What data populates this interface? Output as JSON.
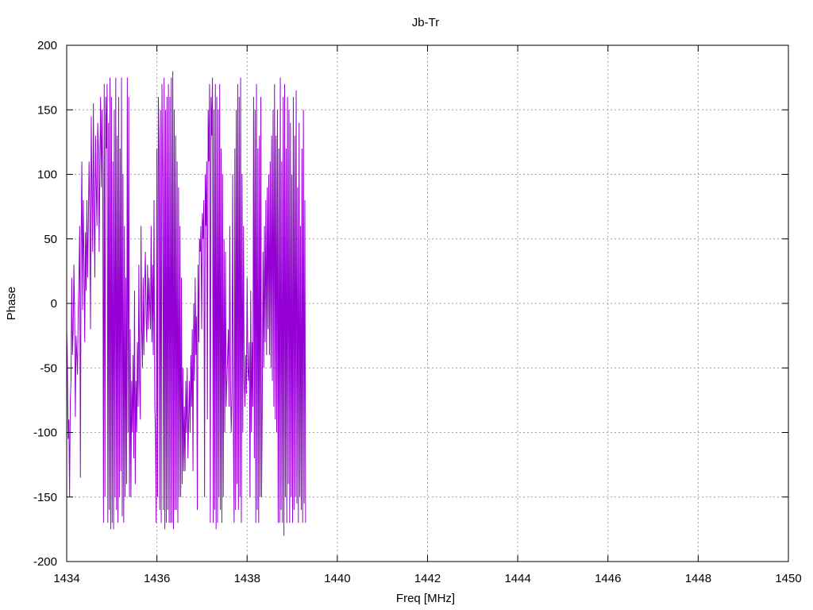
{
  "chart_data": {
    "type": "line",
    "title": "Jb-Tr",
    "xlabel": "Freq [MHz]",
    "ylabel": "Phase",
    "xlim": [
      1434,
      1450
    ],
    "ylim": [
      -200,
      200
    ],
    "x_ticks": [
      1434,
      1436,
      1438,
      1440,
      1442,
      1444,
      1446,
      1448,
      1450
    ],
    "y_ticks": [
      -200,
      -150,
      -100,
      -50,
      0,
      50,
      100,
      150,
      200
    ],
    "grid": true,
    "line_color": "#9400D3",
    "series": [
      {
        "x_start": 1434,
        "x_step": 0.016,
        "values": [
          -20,
          -50,
          -105,
          -90,
          -150,
          -75,
          -60,
          20,
          -40,
          -20,
          30,
          -10,
          -88,
          -25,
          -40,
          -55,
          -5,
          20,
          60,
          -135,
          45,
          110,
          -5,
          80,
          30,
          -30,
          55,
          10,
          80,
          20,
          60,
          110,
          70,
          -20,
          145,
          90,
          40,
          155,
          70,
          20,
          130,
          90,
          60,
          140,
          120,
          40,
          110,
          160,
          90,
          150,
          100,
          -170,
          170,
          -150,
          160,
          120,
          170,
          -170,
          140,
          -160,
          175,
          -175,
          160,
          -170,
          110,
          -175,
          150,
          -150,
          175,
          -160,
          130,
          -170,
          160,
          -150,
          120,
          -130,
          175,
          -165,
          100,
          -170,
          60,
          -150,
          20,
          -140,
          175,
          -100,
          160,
          -150,
          -20,
          -150,
          -60,
          -100,
          -40,
          -120,
          10,
          -140,
          -60,
          -100,
          -30,
          -80,
          30,
          -60,
          -90,
          60,
          -20,
          -50,
          20,
          -40,
          10,
          40,
          -10,
          -30,
          30,
          -20,
          20,
          0,
          -20,
          60,
          -30,
          30,
          -40,
          80,
          -80,
          -100,
          -170,
          120,
          -150,
          160,
          120,
          -160,
          150,
          -170,
          170,
          100,
          -160,
          175,
          -175,
          150,
          -170,
          160,
          -160,
          170,
          -170,
          160,
          -170,
          175,
          -170,
          180,
          -175,
          150,
          -160,
          130,
          -160,
          110,
          -170,
          90,
          -150,
          60,
          -150,
          20,
          -140,
          -50,
          -130,
          -80,
          -130,
          -60,
          -100,
          -50,
          -120,
          -90,
          -60,
          -100,
          -40,
          -80,
          -20,
          -130,
          0,
          -60,
          20,
          -40,
          -10,
          -160,
          30,
          -30,
          50,
          40,
          60,
          -20,
          70,
          50,
          80,
          -150,
          100,
          60,
          110,
          -90,
          150,
          110,
          170,
          -170,
          160,
          130,
          175,
          -170,
          150,
          -160,
          170,
          -175,
          160,
          -170,
          150,
          -150,
          170,
          -160,
          120,
          -170,
          100,
          -150,
          50,
          -100,
          40,
          -80,
          -60,
          -40,
          -20,
          -80,
          60,
          -60,
          -100,
          -70,
          100,
          -100,
          -170,
          120,
          -160,
          150,
          -140,
          170,
          -160,
          160,
          -150,
          175,
          -170,
          100,
          -100,
          60,
          -60,
          -80,
          -40,
          -70,
          20,
          -50,
          -60,
          -30,
          -150,
          10,
          -100,
          -30,
          -80,
          160,
          -120,
          150,
          -170,
          170,
          -160,
          120,
          -170,
          130,
          -150,
          160,
          -150,
          -80,
          40,
          -50,
          60,
          -30,
          80,
          -40,
          90,
          -20,
          100,
          -40,
          110,
          -50,
          130,
          -60,
          150,
          -80,
          170,
          -90,
          130,
          -100,
          150,
          -170,
          120,
          -170,
          175,
          -160,
          110,
          -170,
          160,
          -180,
          170,
          -150,
          120,
          -170,
          160,
          -140,
          150,
          -170,
          140,
          -150,
          100,
          -170,
          160,
          -160,
          130,
          -150,
          165,
          -155,
          90,
          -170,
          140,
          -150,
          60,
          -160,
          120,
          -170,
          150,
          -155,
          80,
          -170
        ]
      }
    ]
  }
}
